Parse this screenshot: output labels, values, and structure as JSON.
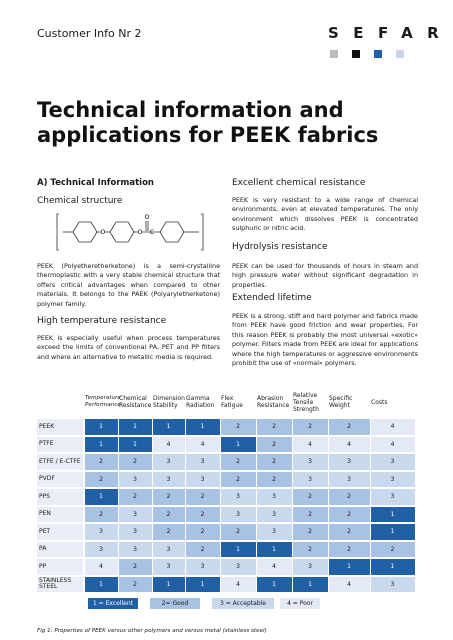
{
  "header": {
    "label": "Customer Info Nr 2",
    "logo": "SEFAR"
  },
  "title": "Technical information and applications for PEEK fabrics",
  "left": {
    "section": "A) Technical Information",
    "structure_heading": "Chemical structure",
    "structure_atoms": [
      "O",
      "O",
      "O",
      "C"
    ],
    "intro": "PEEK (Polyetheretherketone) is a semi-crystalline thermoplastic with a very stable chemical structure that offers critical advantages when compared to other materials. It belongs to the PAEK (Polyaryletherketone) polymer family.",
    "high_temp_heading": "High temperature resistance",
    "high_temp_text": "PEEK is especially useful when process temperatures exceed the limits of conventional PA, PET and PP filters and where an alternative to metallic media is required."
  },
  "right": {
    "chemical_heading": "Excellent chemical resistance",
    "chemical_text": "PEEK is very resistant to a wide range of chemical environments, even at elevated temperatures. The only environment which dissolves PEEK is concentrated sulphuric or nitric acid.",
    "hydrolysis_heading": "Hydrolysis resistance",
    "hydrolysis_text": "PEEK can be used for thousands of hours in steam and high pressure water without significant degradation in properties.",
    "lifetime_heading": "Extended lifetime",
    "lifetime_text": "PEEK is a strong, stiff and hard polymer and fabrics made from PEEK have good friction and wear properties. For this reason PEEK is probably the most universal «exotic» polymer. Filters made from PEEK are ideal for applications where the high temperatures or aggressive environments prohibit the use of «normal» polymers."
  },
  "table": {
    "columns": [
      "Temperature Performance",
      "Chemical Resistance",
      "Dimension Stability",
      "Gamma Radiation",
      "Flex Fatigue",
      "Abrasion Resistance",
      "Relative Tensile Strength",
      "Specific Weight",
      "Costs"
    ],
    "rows": [
      {
        "label": "PEEK",
        "values": [
          1,
          1,
          1,
          1,
          2,
          2,
          2,
          2,
          4
        ]
      },
      {
        "label": "PTFE",
        "values": [
          1,
          1,
          4,
          4,
          1,
          2,
          4,
          4,
          4
        ]
      },
      {
        "label": "ETFE / E-CTFE",
        "values": [
          2,
          2,
          3,
          3,
          2,
          2,
          3,
          3,
          3
        ]
      },
      {
        "label": "PVDF",
        "values": [
          2,
          3,
          3,
          3,
          2,
          2,
          3,
          3,
          3
        ]
      },
      {
        "label": "PPS",
        "values": [
          1,
          2,
          2,
          2,
          3,
          3,
          2,
          2,
          3
        ]
      },
      {
        "label": "PEN",
        "values": [
          2,
          3,
          2,
          2,
          3,
          3,
          2,
          2,
          1
        ]
      },
      {
        "label": "PET",
        "values": [
          3,
          3,
          2,
          2,
          2,
          3,
          2,
          2,
          1
        ]
      },
      {
        "label": "PA",
        "values": [
          3,
          3,
          3,
          2,
          1,
          1,
          2,
          2,
          2
        ]
      },
      {
        "label": "PP",
        "values": [
          4,
          2,
          3,
          3,
          3,
          4,
          3,
          1,
          1
        ]
      },
      {
        "label": "STAINLESS STEEL",
        "values": [
          1,
          2,
          1,
          1,
          4,
          1,
          1,
          4,
          3
        ]
      }
    ],
    "legend": [
      "1 = Excellent",
      "2= Good",
      "3 = Acceptable",
      "4 = Poor"
    ],
    "caption": "Fig 1: Properties of PEEK versus other polymers and versus metal (stainless steel)"
  }
}
